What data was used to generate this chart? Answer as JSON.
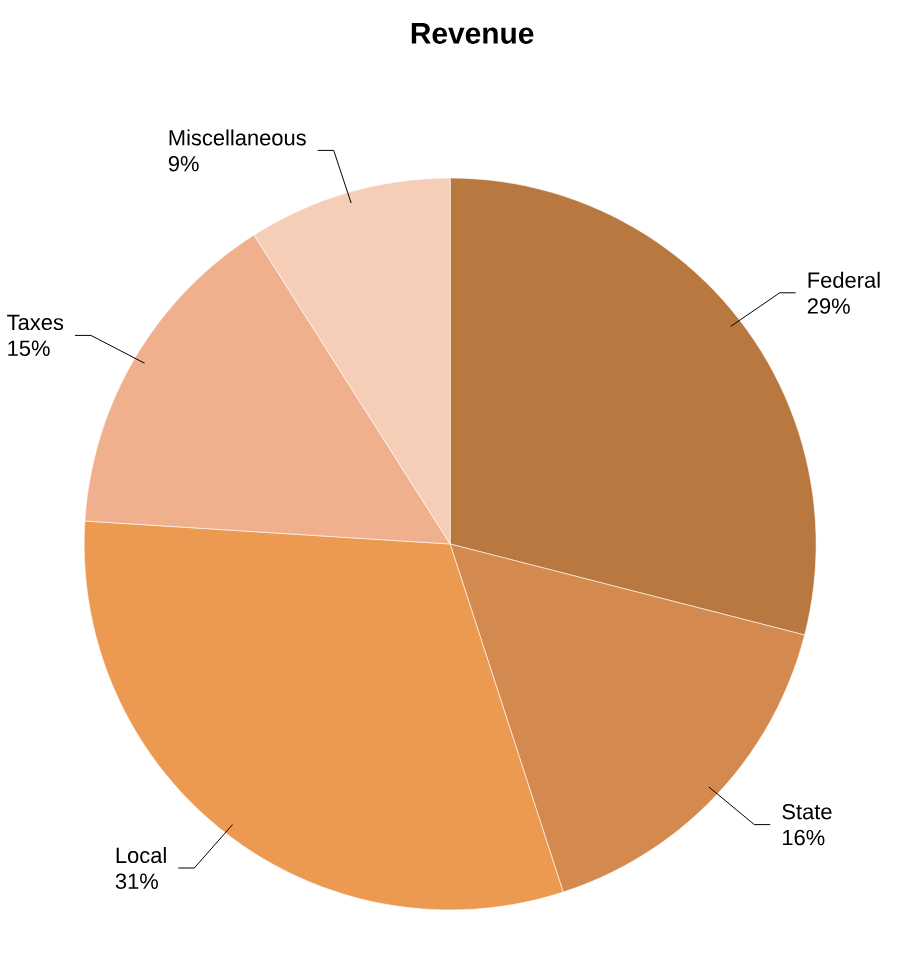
{
  "chart_data": {
    "type": "pie",
    "title": "Revenue",
    "categories": [
      "Federal",
      "State",
      "Local",
      "Taxes",
      "Miscellaneous"
    ],
    "values": [
      29,
      16,
      31,
      15,
      9
    ],
    "value_labels": [
      "29%",
      "16%",
      "31%",
      "15%",
      "9%"
    ],
    "colors": [
      "#b8783f",
      "#d4894f",
      "#ec9a52",
      "#f0b08e",
      "#f6cdb6"
    ]
  }
}
